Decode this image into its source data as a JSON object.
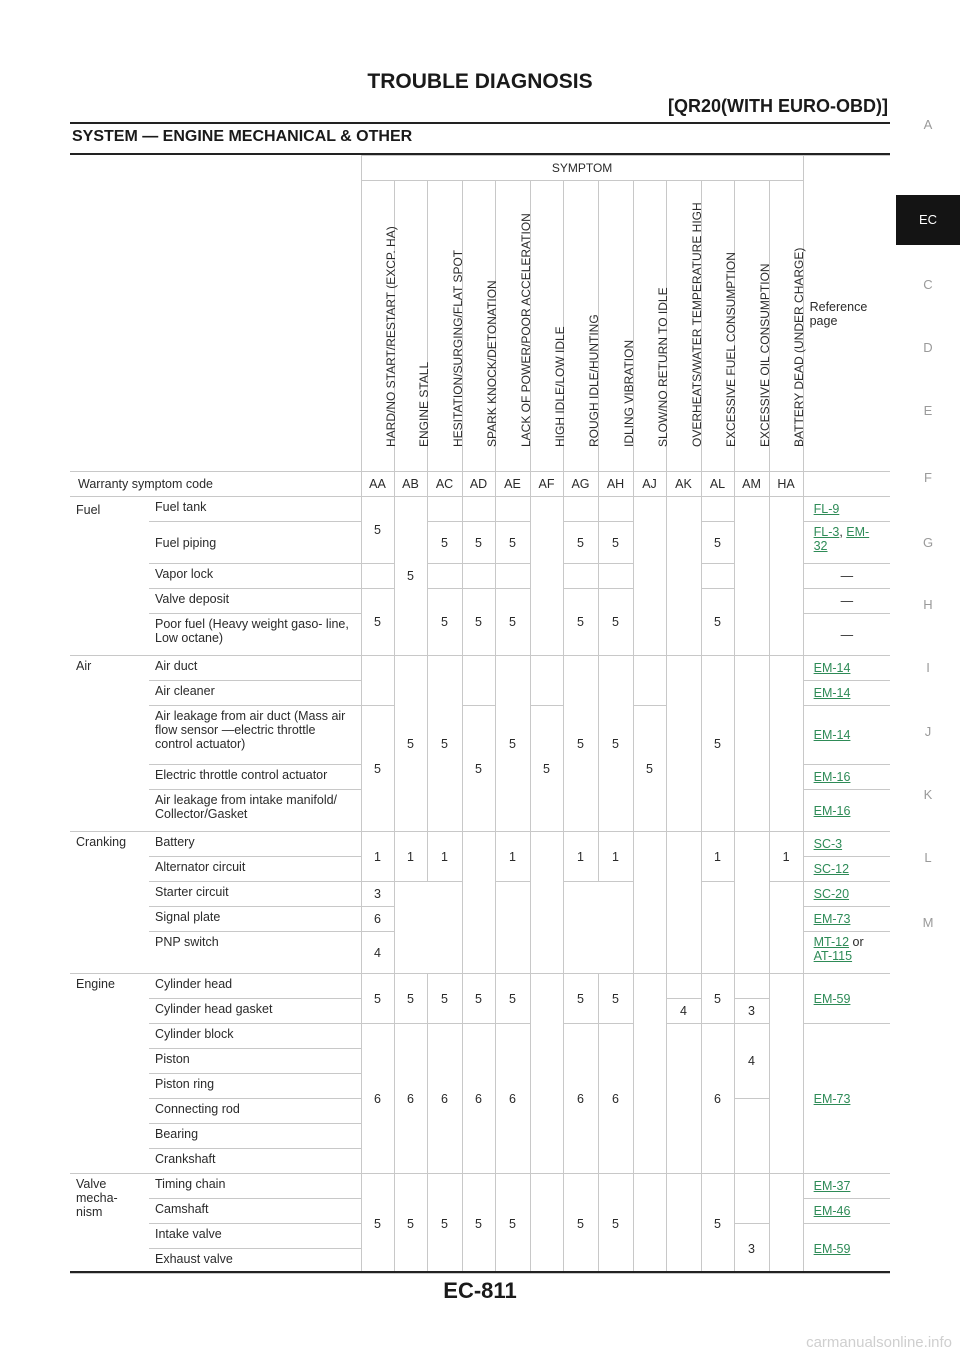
{
  "header": {
    "title": "TROUBLE DIAGNOSIS",
    "subtitle": "[QR20(WITH EURO-OBD)]"
  },
  "section_title": "SYSTEM — ENGINE MECHANICAL & OTHER",
  "page_number": "EC-811",
  "watermark": "carmanualsonline.info",
  "side_tabs": [
    "A",
    "EC",
    "C",
    "D",
    "E",
    "F",
    "G",
    "H",
    "I",
    "J",
    "K",
    "L",
    "M"
  ],
  "active_tab": "EC",
  "table": {
    "symptom_header": "SYMPTOM",
    "reference_header": "Reference page",
    "symptoms": [
      "HARD/NO START/RESTART (EXCP. HA)",
      "ENGINE STALL",
      "HESITATION/SURGING/FLAT SPOT",
      "SPARK KNOCK/DETONATION",
      "LACK OF POWER/POOR ACCELERATION",
      "HIGH IDLE/LOW IDLE",
      "ROUGH IDLE/HUNTING",
      "IDLING VIBRATION",
      "SLOW/NO RETURN TO IDLE",
      "OVERHEATS/WATER TEMPERATURE HIGH",
      "EXCESSIVE FUEL CONSUMPTION",
      "EXCESSIVE OIL CONSUMPTION",
      "BATTERY DEAD (UNDER CHARGE)"
    ],
    "warranty_label": "Warranty symptom code",
    "codes": [
      "AA",
      "AB",
      "AC",
      "AD",
      "AE",
      "AF",
      "AG",
      "AH",
      "AJ",
      "AK",
      "AL",
      "AM",
      "HA"
    ],
    "groups": {
      "fuel": "Fuel",
      "air": "Air",
      "cranking": "Cranking",
      "engine": "Engine",
      "valve": "Valve mecha- nism"
    },
    "items": {
      "fuel_tank": "Fuel tank",
      "fuel_piping": "Fuel piping",
      "vapor_lock": "Vapor lock",
      "valve_deposit": "Valve deposit",
      "poor_fuel": "Poor fuel (Heavy weight gaso- line, Low octane)",
      "air_duct": "Air duct",
      "air_cleaner": "Air cleaner",
      "air_leak_duct": "Air leakage from air duct (Mass air flow sensor —electric throttle control actuator)",
      "etc_actuator": "Electric throttle control actuator",
      "air_leak_manifold": "Air leakage from intake manifold/ Collector/Gasket",
      "battery": "Battery",
      "alternator": "Alternator circuit",
      "starter": "Starter circuit",
      "signal_plate": "Signal plate",
      "pnp": "PNP switch",
      "cyl_head": "Cylinder head",
      "cyl_head_gasket": "Cylinder head gasket",
      "cyl_block": "Cylinder block",
      "piston": "Piston",
      "piston_ring": "Piston ring",
      "conn_rod": "Connecting rod",
      "bearing": "Bearing",
      "crankshaft": "Crankshaft",
      "timing_chain": "Timing chain",
      "camshaft": "Camshaft",
      "intake_valve": "Intake valve",
      "exhaust_valve": "Exhaust valve"
    },
    "refs": {
      "dash": "—",
      "or": "or",
      "fl9": "FL-9",
      "fl3": "FL-3",
      "em32": "EM-32",
      "em14": "EM-14",
      "em16": "EM-16",
      "sc3": "SC-3",
      "sc12": "SC-12",
      "sc20": "SC-20",
      "em73": "EM-73",
      "mt12": "MT-12",
      "at115": "AT-115",
      "em59": "EM-59",
      "em37": "EM-37",
      "em46": "EM-46"
    },
    "v": {
      "one": "1",
      "three": "3",
      "four": "4",
      "five": "5",
      "six": "6"
    }
  }
}
